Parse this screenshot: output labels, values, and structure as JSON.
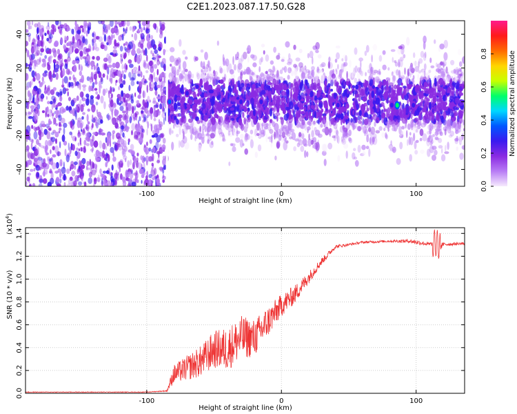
{
  "title": "C2E1.2023.087.17.50.G28",
  "chart_data": [
    {
      "type": "heatmap",
      "xlabel": "Height of straight line (km)",
      "ylabel": "Frequency (Hz)",
      "xlim": [
        -190,
        136
      ],
      "ylim": [
        -50,
        48
      ],
      "x_ticks": [
        -100,
        0,
        100
      ],
      "y_ticks": [
        -40,
        -20,
        0,
        20,
        40
      ],
      "colorbar": {
        "label": "Normalized spectral amplitude",
        "range": [
          0,
          1
        ],
        "ticks": [
          0.0,
          0.2,
          0.4,
          0.6,
          0.8
        ],
        "colors": [
          "#f6eafd",
          "#b87cf5",
          "#8a2be2",
          "#3a1af0",
          "#0057ff",
          "#00d8ff",
          "#00ff6a",
          "#c8ff00",
          "#ffd500",
          "#ff6a00",
          "#ff1a1a",
          "#ff1a8c"
        ]
      },
      "noise_region": {
        "x": [
          -190,
          -85
        ],
        "y": [
          -50,
          48
        ],
        "density": "high"
      },
      "signal_band": {
        "x": [
          -85,
          136
        ],
        "y": [
          -32,
          32
        ],
        "core_y": [
          -10,
          10
        ]
      },
      "gap_x": -85,
      "hot_spots": [
        {
          "x": -83,
          "y": 0,
          "value": 0.35
        },
        {
          "x": -70,
          "y": 5,
          "value": 0.3
        },
        {
          "x": -30,
          "y": 0,
          "value": 0.28
        },
        {
          "x": -15,
          "y": 0,
          "value": 0.3
        },
        {
          "x": 42,
          "y": -2,
          "value": 0.25
        },
        {
          "x": 82,
          "y": -2,
          "value": 0.3
        },
        {
          "x": 86,
          "y": -2,
          "value": 0.55
        },
        {
          "x": 98,
          "y": -2,
          "value": 0.3
        }
      ]
    },
    {
      "type": "line",
      "xlabel": "Height of straight line (km)",
      "ylabel": "SNR (10 * v/v)",
      "y_multiplier": "(x10",
      "y_exponent": "4",
      "y_multiplier_close": ")",
      "xlim": [
        -190,
        136
      ],
      "ylim": [
        0,
        1.45
      ],
      "x_ticks": [
        -100,
        0,
        100
      ],
      "y_ticks": [
        0.0,
        0.2,
        0.4,
        0.6,
        0.8,
        1.0,
        1.2,
        1.4
      ],
      "series": [
        {
          "color": "#ee3333",
          "x": [
            -190,
            -150,
            -100,
            -85,
            -80,
            -70,
            -60,
            -50,
            -40,
            -30,
            -20,
            -10,
            0,
            10,
            20,
            30,
            40,
            50,
            60,
            80,
            95,
            100,
            110,
            115,
            118,
            120,
            136
          ],
          "y": [
            0.01,
            0.01,
            0.01,
            0.02,
            0.15,
            0.2,
            0.25,
            0.35,
            0.35,
            0.45,
            0.45,
            0.6,
            0.75,
            0.85,
            1.0,
            1.15,
            1.28,
            1.3,
            1.32,
            1.33,
            1.33,
            1.32,
            1.3,
            1.32,
            1.28,
            1.3,
            1.31
          ],
          "noise_amplitude": [
            0.005,
            0.005,
            0.005,
            0.01,
            0.15,
            0.2,
            0.25,
            0.3,
            0.35,
            0.35,
            0.3,
            0.25,
            0.18,
            0.15,
            0.1,
            0.06,
            0.03,
            0.02,
            0.02,
            0.02,
            0.03,
            0.04,
            0.03,
            0.06,
            0.08,
            0.03,
            0.02
          ]
        }
      ]
    }
  ]
}
